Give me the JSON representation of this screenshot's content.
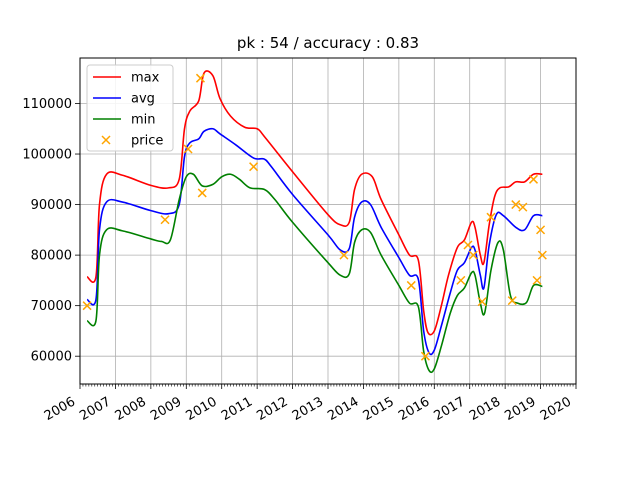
{
  "chart_data": {
    "type": "line",
    "title": "pk : 54 / accuracy : 0.83",
    "xlabel": "",
    "ylabel": "",
    "xlim": [
      2006,
      2020
    ],
    "ylim": [
      54500,
      119000
    ],
    "x_ticks": [
      "2006",
      "2007",
      "2008",
      "2009",
      "2010",
      "2011",
      "2012",
      "2013",
      "2014",
      "2015",
      "2016",
      "2017",
      "2018",
      "2019",
      "2020"
    ],
    "y_ticks": [
      60000,
      70000,
      80000,
      90000,
      100000,
      110000
    ],
    "y_tick_labels": [
      "60000",
      "70000",
      "80000",
      "90000",
      "100000",
      "110000"
    ],
    "grid": true,
    "legend": "top-left",
    "series": [
      {
        "name": "max",
        "color": "#ff0000",
        "points": [
          [
            2006.2,
            75700
          ],
          [
            2006.45,
            75700
          ],
          [
            2006.55,
            90000
          ],
          [
            2006.75,
            96000
          ],
          [
            2007.2,
            95800
          ],
          [
            2008.0,
            93800
          ],
          [
            2008.5,
            93300
          ],
          [
            2008.8,
            95000
          ],
          [
            2008.95,
            105000
          ],
          [
            2009.1,
            108500
          ],
          [
            2009.35,
            110500
          ],
          [
            2009.5,
            116000
          ],
          [
            2009.75,
            115500
          ],
          [
            2009.95,
            111000
          ],
          [
            2010.25,
            107500
          ],
          [
            2010.65,
            105300
          ],
          [
            2011.0,
            105000
          ],
          [
            2011.2,
            103500
          ],
          [
            2012.0,
            96500
          ],
          [
            2013.0,
            88000
          ],
          [
            2013.35,
            86000
          ],
          [
            2013.6,
            86500
          ],
          [
            2013.75,
            93000
          ],
          [
            2013.95,
            96000
          ],
          [
            2014.25,
            95500
          ],
          [
            2014.5,
            91000
          ],
          [
            2015.0,
            84000
          ],
          [
            2015.3,
            80000
          ],
          [
            2015.55,
            79000
          ],
          [
            2015.7,
            69000
          ],
          [
            2015.82,
            64700
          ],
          [
            2016.0,
            65000
          ],
          [
            2016.2,
            70000
          ],
          [
            2016.4,
            76000
          ],
          [
            2016.65,
            81500
          ],
          [
            2016.85,
            83000
          ],
          [
            2017.05,
            86500
          ],
          [
            2017.15,
            85500
          ],
          [
            2017.3,
            80000
          ],
          [
            2017.4,
            78500
          ],
          [
            2017.55,
            86000
          ],
          [
            2017.7,
            91500
          ],
          [
            2017.85,
            93300
          ],
          [
            2018.1,
            93500
          ],
          [
            2018.3,
            94500
          ],
          [
            2018.55,
            94500
          ],
          [
            2018.8,
            96000
          ],
          [
            2019.05,
            96000
          ]
        ]
      },
      {
        "name": "avg",
        "color": "#0000ff",
        "points": [
          [
            2006.2,
            71200
          ],
          [
            2006.45,
            71200
          ],
          [
            2006.55,
            85000
          ],
          [
            2006.75,
            90500
          ],
          [
            2007.2,
            90500
          ],
          [
            2008.0,
            88800
          ],
          [
            2008.5,
            88200
          ],
          [
            2008.8,
            90000
          ],
          [
            2008.95,
            99500
          ],
          [
            2009.1,
            102200
          ],
          [
            2009.35,
            103000
          ],
          [
            2009.5,
            104500
          ],
          [
            2009.75,
            105000
          ],
          [
            2009.95,
            104000
          ],
          [
            2010.4,
            101800
          ],
          [
            2010.9,
            99200
          ],
          [
            2011.2,
            99000
          ],
          [
            2011.4,
            97500
          ],
          [
            2012.0,
            92000
          ],
          [
            2013.0,
            84000
          ],
          [
            2013.35,
            81000
          ],
          [
            2013.6,
            81300
          ],
          [
            2013.75,
            87500
          ],
          [
            2013.95,
            90500
          ],
          [
            2014.2,
            90000
          ],
          [
            2014.5,
            85500
          ],
          [
            2015.0,
            79500
          ],
          [
            2015.3,
            76000
          ],
          [
            2015.55,
            75200
          ],
          [
            2015.7,
            65000
          ],
          [
            2015.85,
            60700
          ],
          [
            2016.0,
            61200
          ],
          [
            2016.2,
            66000
          ],
          [
            2016.45,
            72500
          ],
          [
            2016.65,
            77000
          ],
          [
            2016.85,
            78500
          ],
          [
            2017.05,
            81500
          ],
          [
            2017.15,
            81000
          ],
          [
            2017.3,
            76000
          ],
          [
            2017.4,
            73500
          ],
          [
            2017.55,
            82000
          ],
          [
            2017.75,
            88000
          ],
          [
            2017.95,
            87800
          ],
          [
            2018.3,
            85500
          ],
          [
            2018.55,
            85000
          ],
          [
            2018.8,
            87800
          ],
          [
            2019.05,
            87800
          ]
        ]
      },
      {
        "name": "min",
        "color": "#008000",
        "points": [
          [
            2006.2,
            67000
          ],
          [
            2006.45,
            67000
          ],
          [
            2006.55,
            80000
          ],
          [
            2006.75,
            85000
          ],
          [
            2007.2,
            84800
          ],
          [
            2008.0,
            83200
          ],
          [
            2008.3,
            82700
          ],
          [
            2008.55,
            83000
          ],
          [
            2008.8,
            91000
          ],
          [
            2009.0,
            95500
          ],
          [
            2009.2,
            96000
          ],
          [
            2009.45,
            93700
          ],
          [
            2009.75,
            94000
          ],
          [
            2010.0,
            95500
          ],
          [
            2010.25,
            96000
          ],
          [
            2010.5,
            95000
          ],
          [
            2010.8,
            93300
          ],
          [
            2011.2,
            93000
          ],
          [
            2011.5,
            91000
          ],
          [
            2012.0,
            86500
          ],
          [
            2013.0,
            78500
          ],
          [
            2013.35,
            76000
          ],
          [
            2013.6,
            76300
          ],
          [
            2013.75,
            82500
          ],
          [
            2013.95,
            85000
          ],
          [
            2014.2,
            84500
          ],
          [
            2014.5,
            80000
          ],
          [
            2015.0,
            74000
          ],
          [
            2015.3,
            70500
          ],
          [
            2015.55,
            69800
          ],
          [
            2015.7,
            61000
          ],
          [
            2015.85,
            57200
          ],
          [
            2016.0,
            57500
          ],
          [
            2016.2,
            62000
          ],
          [
            2016.45,
            68500
          ],
          [
            2016.65,
            72000
          ],
          [
            2016.85,
            73500
          ],
          [
            2017.05,
            76500
          ],
          [
            2017.15,
            76000
          ],
          [
            2017.3,
            70500
          ],
          [
            2017.42,
            68500
          ],
          [
            2017.6,
            77000
          ],
          [
            2017.8,
            82500
          ],
          [
            2017.95,
            81000
          ],
          [
            2018.15,
            72000
          ],
          [
            2018.35,
            70500
          ],
          [
            2018.6,
            70600
          ],
          [
            2018.8,
            74000
          ],
          [
            2019.05,
            73800
          ]
        ]
      },
      {
        "name": "price",
        "type": "scatter",
        "color": "#ffa500",
        "marker": "x",
        "points": [
          [
            2006.2,
            70000
          ],
          [
            2008.4,
            87000
          ],
          [
            2009.05,
            101000
          ],
          [
            2009.4,
            115000
          ],
          [
            2009.45,
            92300
          ],
          [
            2010.9,
            97500
          ],
          [
            2013.45,
            80000
          ],
          [
            2015.35,
            74000
          ],
          [
            2015.75,
            60000
          ],
          [
            2016.75,
            75000
          ],
          [
            2016.95,
            82000
          ],
          [
            2017.1,
            80000
          ],
          [
            2017.35,
            70800
          ],
          [
            2017.6,
            87500
          ],
          [
            2018.2,
            71000
          ],
          [
            2018.3,
            90000
          ],
          [
            2018.5,
            89500
          ],
          [
            2018.8,
            95000
          ],
          [
            2018.9,
            75000
          ],
          [
            2019.0,
            85000
          ],
          [
            2019.05,
            80000
          ]
        ]
      }
    ]
  }
}
